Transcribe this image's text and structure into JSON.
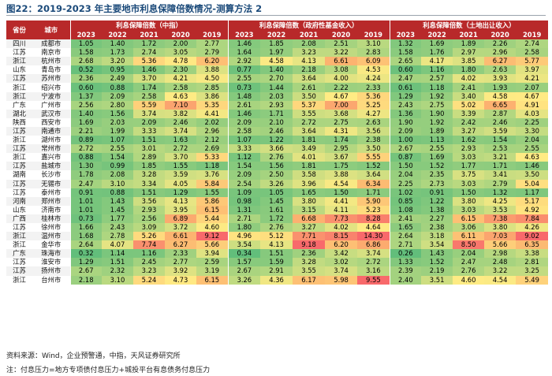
{
  "title": "图22：2019-2023 年主要地市利息保障倍数情况-测算方法 2",
  "header": {
    "province": "省份",
    "city": "城市",
    "groups": [
      "利息保障倍数（中指）",
      "利息保障倍数（政府性基金收入）",
      "利息保障倍数（土地出让收入）"
    ],
    "years": [
      "2023",
      "2022",
      "2021",
      "2020",
      "2019"
    ]
  },
  "rows": [
    {
      "province": "四川",
      "city": "成都市",
      "values": [
        1.05,
        1.4,
        1.72,
        2.0,
        2.77,
        1.46,
        1.85,
        2.08,
        2.51,
        3.1,
        1.32,
        1.69,
        1.89,
        2.26,
        2.74
      ]
    },
    {
      "province": "江苏",
      "city": "南京市",
      "values": [
        1.58,
        1.73,
        2.74,
        3.05,
        2.79,
        1.64,
        1.97,
        3.23,
        3.22,
        2.83,
        1.58,
        1.76,
        2.97,
        2.96,
        2.58
      ]
    },
    {
      "province": "浙江",
      "city": "杭州市",
      "values": [
        2.68,
        3.2,
        5.36,
        4.78,
        6.2,
        2.92,
        4.58,
        4.13,
        6.61,
        6.09,
        2.65,
        4.17,
        3.85,
        6.27,
        5.77
      ]
    },
    {
      "province": "山东",
      "city": "青岛市",
      "values": [
        0.52,
        0.95,
        1.46,
        2.3,
        3.88,
        0.77,
        1.4,
        2.18,
        3.08,
        4.53,
        0.6,
        1.16,
        1.8,
        2.63,
        3.97
      ]
    },
    {
      "province": "江苏",
      "city": "苏州市",
      "values": [
        2.36,
        2.49,
        3.7,
        4.21,
        4.5,
        2.55,
        2.7,
        3.64,
        4.0,
        4.24,
        2.47,
        2.57,
        4.02,
        3.93,
        4.21
      ]
    },
    {
      "province": "浙江",
      "city": "绍兴市",
      "values": [
        0.6,
        0.88,
        1.74,
        2.58,
        2.85,
        0.73,
        1.44,
        2.61,
        2.22,
        2.33,
        0.61,
        1.18,
        2.41,
        1.93,
        2.07
      ]
    },
    {
      "province": "浙江",
      "city": "宁波市",
      "values": [
        1.37,
        2.09,
        2.58,
        4.63,
        3.86,
        1.48,
        2.03,
        3.5,
        4.67,
        5.36,
        1.29,
        1.92,
        3.4,
        4.58,
        4.67
      ]
    },
    {
      "province": "广东",
      "city": "广州市",
      "values": [
        2.56,
        2.8,
        5.59,
        7.1,
        5.35,
        2.61,
        2.93,
        5.37,
        7.0,
        5.25,
        2.43,
        2.75,
        5.02,
        6.65,
        4.91
      ]
    },
    {
      "province": "湖北",
      "city": "武汉市",
      "values": [
        1.4,
        1.56,
        3.74,
        3.82,
        4.41,
        1.46,
        1.71,
        3.55,
        3.68,
        4.27,
        1.36,
        1.9,
        3.39,
        2.87,
        4.03
      ]
    },
    {
      "province": "陕西",
      "city": "西安市",
      "values": [
        1.69,
        2.03,
        2.09,
        2.46,
        2.02,
        2.09,
        2.1,
        2.72,
        2.75,
        2.63,
        1.9,
        1.92,
        2.42,
        2.46,
        2.25
      ]
    },
    {
      "province": "江苏",
      "city": "南通市",
      "values": [
        2.21,
        1.99,
        3.33,
        3.74,
        2.96,
        2.58,
        2.46,
        3.64,
        4.31,
        3.56,
        2.09,
        1.89,
        3.27,
        3.59,
        3.3
      ]
    },
    {
      "province": "浙江",
      "city": "湖州市",
      "values": [
        0.89,
        1.07,
        1.51,
        1.63,
        2.12,
        1.07,
        1.22,
        1.81,
        1.74,
        2.38,
        1.0,
        1.13,
        1.62,
        1.54,
        2.04
      ]
    },
    {
      "province": "江苏",
      "city": "常州市",
      "values": [
        2.72,
        2.55,
        3.01,
        2.72,
        2.69,
        3.33,
        3.66,
        3.49,
        2.95,
        3.5,
        2.67,
        2.55,
        2.93,
        2.53,
        2.55
      ]
    },
    {
      "province": "浙江",
      "city": "嘉兴市",
      "values": [
        0.88,
        1.54,
        2.89,
        3.7,
        5.33,
        1.12,
        2.76,
        4.01,
        3.67,
        5.55,
        0.87,
        1.69,
        3.03,
        3.21,
        4.63
      ]
    },
    {
      "province": "江苏",
      "city": "盐城市",
      "values": [
        1.3,
        0.99,
        1.85,
        1.55,
        1.18,
        1.54,
        1.56,
        1.81,
        1.75,
        1.52,
        1.5,
        1.52,
        1.77,
        1.71,
        1.46
      ]
    },
    {
      "province": "湖南",
      "city": "长沙市",
      "values": [
        1.78,
        2.08,
        3.28,
        3.59,
        3.76,
        2.09,
        2.5,
        3.58,
        3.88,
        3.64,
        2.04,
        2.35,
        3.75,
        3.41,
        3.5
      ]
    },
    {
      "province": "江苏",
      "city": "无锡市",
      "values": [
        2.47,
        3.1,
        3.34,
        4.05,
        5.84,
        2.54,
        3.26,
        3.96,
        4.54,
        6.34,
        2.25,
        2.73,
        3.03,
        2.79,
        5.04
      ]
    },
    {
      "province": "江苏",
      "city": "泰州市",
      "values": [
        0.91,
        0.88,
        1.51,
        1.29,
        1.55,
        1.09,
        1.05,
        1.65,
        1.5,
        1.71,
        1.02,
        0.91,
        1.5,
        1.32,
        1.17
      ]
    },
    {
      "province": "河南",
      "city": "郑州市",
      "values": [
        1.01,
        1.43,
        3.56,
        4.13,
        5.86,
        0.98,
        1.45,
        3.8,
        4.41,
        5.9,
        0.85,
        1.22,
        3.8,
        4.25,
        5.17
      ]
    },
    {
      "province": "山东",
      "city": "济南市",
      "values": [
        1.01,
        1.45,
        2.93,
        3.95,
        6.15,
        1.31,
        1.61,
        3.15,
        4.11,
        5.23,
        1.08,
        1.38,
        3.03,
        3.53,
        4.92
      ]
    },
    {
      "province": "广西",
      "city": "桂林市",
      "values": [
        0.73,
        1.77,
        2.56,
        6.89,
        5.44,
        2.71,
        1.72,
        6.68,
        7.73,
        8.28,
        2.41,
        2.27,
        6.15,
        7.38,
        7.84
      ]
    },
    {
      "province": "江苏",
      "city": "徐州市",
      "values": [
        1.66,
        2.43,
        3.09,
        3.72,
        4.6,
        1.8,
        2.76,
        3.27,
        4.02,
        4.64,
        1.65,
        2.38,
        3.06,
        3.8,
        4.26
      ]
    },
    {
      "province": "浙江",
      "city": "温州市",
      "values": [
        1.68,
        2.78,
        5.26,
        6.61,
        9.12,
        4.96,
        5.12,
        7.71,
        8.15,
        14.3,
        2.64,
        3.18,
        6.11,
        7.03,
        9.02
      ]
    },
    {
      "province": "浙江",
      "city": "金华市",
      "values": [
        2.64,
        4.07,
        7.74,
        6.27,
        5.66,
        3.54,
        4.13,
        9.18,
        6.2,
        6.86,
        2.71,
        3.54,
        8.5,
        5.66,
        6.35
      ]
    },
    {
      "province": "广东",
      "city": "珠海市",
      "values": [
        0.32,
        1.14,
        1.16,
        2.33,
        3.94,
        0.34,
        1.51,
        2.36,
        3.42,
        3.74,
        0.26,
        1.43,
        2.04,
        2.98,
        3.38
      ]
    },
    {
      "province": "江苏",
      "city": "淮安市",
      "values": [
        1.29,
        1.51,
        2.45,
        2.77,
        2.59,
        1.57,
        1.59,
        3.28,
        3.02,
        2.72,
        1.33,
        1.52,
        2.47,
        2.48,
        2.81
      ]
    },
    {
      "province": "江苏",
      "city": "扬州市",
      "values": [
        2.67,
        2.32,
        3.23,
        3.92,
        3.19,
        2.67,
        2.91,
        3.55,
        3.74,
        3.16,
        2.39,
        2.19,
        2.76,
        3.22,
        3.25
      ]
    },
    {
      "province": "浙江",
      "city": "台州市",
      "values": [
        2.18,
        3.1,
        5.24,
        4.73,
        6.15,
        3.26,
        4.36,
        6.17,
        5.98,
        9.55,
        2.4,
        3.51,
        4.6,
        4.54,
        5.49
      ]
    }
  ],
  "source": "资料来源：Wind，企业预警通，中指，天风证券研究所",
  "note": "注：付息压力=地方专项债付息压力+城投平台有息债务付息压力"
}
